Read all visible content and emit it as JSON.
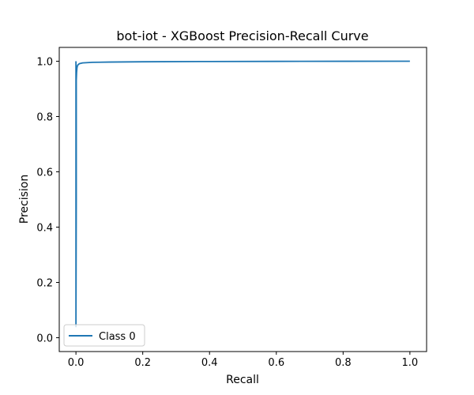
{
  "chart_data": {
    "type": "line",
    "title": "bot-iot - XGBoost Precision-Recall Curve",
    "xlabel": "Recall",
    "ylabel": "Precision",
    "xlim": [
      -0.05,
      1.05
    ],
    "ylim": [
      -0.05,
      1.05
    ],
    "xticks": [
      0.0,
      0.2,
      0.4,
      0.6,
      0.8,
      1.0
    ],
    "xtick_labels": [
      "0.0",
      "0.2",
      "0.4",
      "0.6",
      "0.8",
      "1.0"
    ],
    "yticks": [
      0.0,
      0.2,
      0.4,
      0.6,
      0.8,
      1.0
    ],
    "ytick_labels": [
      "0.0",
      "0.2",
      "0.4",
      "0.6",
      "0.8",
      "1.0"
    ],
    "grid": false,
    "legend_position": "lower-left",
    "series": [
      {
        "name": "Class 0",
        "color": "#1f77b4",
        "x": [
          0.0,
          0.0,
          0.001,
          0.001,
          0.002,
          0.003,
          0.004,
          0.006,
          0.01,
          0.02,
          0.05,
          0.1,
          0.2,
          0.4,
          0.6,
          0.8,
          1.0
        ],
        "y": [
          1.0,
          0.04,
          0.5,
          0.93,
          0.96,
          0.975,
          0.982,
          0.987,
          0.991,
          0.994,
          0.996,
          0.997,
          0.998,
          0.999,
          0.9995,
          0.9998,
          1.0
        ]
      }
    ]
  }
}
